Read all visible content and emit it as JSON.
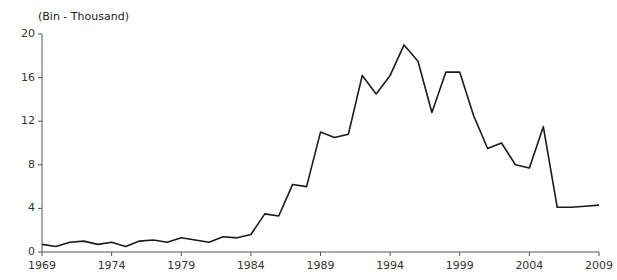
{
  "chart_data": {
    "type": "line",
    "ylabel": "(Bin - Thousand)",
    "x": [
      1969,
      1970,
      1971,
      1972,
      1973,
      1974,
      1975,
      1976,
      1977,
      1978,
      1979,
      1980,
      1981,
      1982,
      1983,
      1984,
      1985,
      1986,
      1987,
      1988,
      1989,
      1990,
      1991,
      1992,
      1993,
      1994,
      1995,
      1996,
      1997,
      1998,
      1999,
      2000,
      2001,
      2002,
      2003,
      2004,
      2005,
      2006,
      2007,
      2008,
      2009
    ],
    "values": [
      0.7,
      0.5,
      0.9,
      1.0,
      0.7,
      0.9,
      0.5,
      1.0,
      1.1,
      0.9,
      1.3,
      1.1,
      0.9,
      1.4,
      1.3,
      1.6,
      3.5,
      3.3,
      6.2,
      6.0,
      11.0,
      10.5,
      10.8,
      16.2,
      14.5,
      16.2,
      19.0,
      17.5,
      12.8,
      16.5,
      16.5,
      12.5,
      9.5,
      10.0,
      8.0,
      7.7,
      11.5,
      4.1,
      4.1,
      4.2,
      4.3
    ],
    "color": "#1a1a1a",
    "xlim": [
      1969,
      2009
    ],
    "xticks": [
      1969,
      1974,
      1979,
      1984,
      1989,
      1994,
      1999,
      2004,
      2009
    ],
    "ylim": [
      0,
      20
    ],
    "yticks": [
      0,
      4,
      8,
      12,
      16,
      20
    ],
    "grid": false
  }
}
